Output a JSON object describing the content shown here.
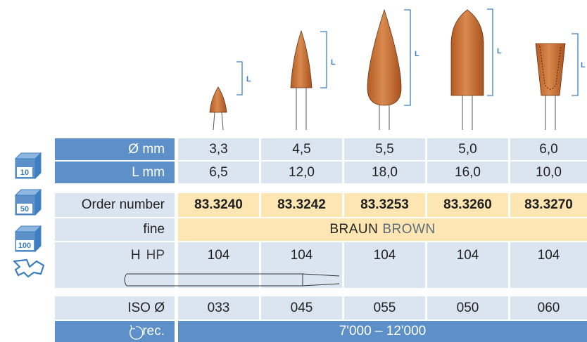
{
  "tools": [
    "L",
    "L",
    "L",
    "L",
    "L"
  ],
  "icons": [
    "10",
    "50",
    "100"
  ],
  "table": {
    "diameter": {
      "label": "Ø mm",
      "values": [
        "3,3",
        "4,5",
        "5,5",
        "5,0",
        "6,0"
      ]
    },
    "length": {
      "label": "L mm",
      "values": [
        "6,5",
        "12,0",
        "18,0",
        "16,0",
        "10,0"
      ]
    },
    "order": {
      "label": "Order number",
      "values": [
        "83.3240",
        "83.3242",
        "83.3253",
        "83.3260",
        "83.3270"
      ]
    },
    "grit": {
      "label": "fine",
      "value_de": "BRAUN",
      "value_en": "BROWN"
    },
    "shank": {
      "label_h": "H",
      "label_hp": "HP",
      "values": [
        "104",
        "104",
        "104",
        "104",
        "104"
      ]
    },
    "iso": {
      "label": "ISO Ø",
      "values": [
        "033",
        "045",
        "055",
        "050",
        "060"
      ]
    },
    "speed": {
      "label": "rec.",
      "value": "7'000 – 12'000"
    }
  }
}
